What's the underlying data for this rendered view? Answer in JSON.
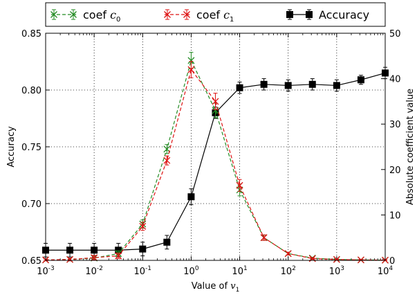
{
  "chart_data": {
    "type": "line",
    "x": [
      0.001,
      0.00316,
      0.01,
      0.0316,
      0.1,
      0.316,
      1,
      3.16,
      10,
      31.6,
      100,
      316,
      1000,
      3162,
      10000
    ],
    "xscale": "log",
    "xlim": [
      0.001,
      10000
    ],
    "x_tick_labels": [
      {
        "base": "10",
        "exp": "-3"
      },
      {
        "base": "10",
        "exp": "-2"
      },
      {
        "base": "10",
        "exp": "-1"
      },
      {
        "base": "10",
        "exp": "0"
      },
      {
        "base": "10",
        "exp": "1"
      },
      {
        "base": "10",
        "exp": "2"
      },
      {
        "base": "10",
        "exp": "3"
      },
      {
        "base": "10",
        "exp": "4"
      }
    ],
    "xlabel": {
      "text": "Value of ",
      "var": "v",
      "sub": "1"
    },
    "ylabel_left": "Accuracy",
    "ylim_left": [
      0.65,
      0.85
    ],
    "y_left_ticks": [
      "0.65",
      "0.70",
      "0.75",
      "0.80",
      "0.85"
    ],
    "ylabel_right": "Absolute coefficient value",
    "ylim_right": [
      0,
      50
    ],
    "y_right_ticks": [
      "0",
      "10",
      "20",
      "30",
      "40",
      "50"
    ],
    "grid": true,
    "legend_position": "top, outside",
    "series": [
      {
        "name": "coef",
        "name_var": "c",
        "name_sub": "0",
        "axis": "right",
        "color": "#228B22",
        "linestyle": "dashed",
        "marker": "x",
        "values": [
          0.1,
          0.2,
          0.5,
          1.5,
          8.0,
          24.5,
          44.0,
          33.0,
          15.5,
          5.0,
          1.5,
          0.5,
          0.2,
          0.1,
          0.05
        ],
        "errors": [
          0.2,
          0.3,
          0.5,
          0.6,
          0.9,
          1.0,
          1.8,
          1.6,
          1.3,
          0.6,
          0.3,
          0.2,
          0.1,
          0.1,
          0.05
        ]
      },
      {
        "name": "coef",
        "name_var": "c",
        "name_sub": "1",
        "axis": "right",
        "color": "#DD1111",
        "linestyle": "dashed",
        "marker": "x",
        "values": [
          0.1,
          0.2,
          0.6,
          1.0,
          7.5,
          22.0,
          42.0,
          35.0,
          16.5,
          5.0,
          1.5,
          0.4,
          0.2,
          0.1,
          0.05
        ],
        "errors": [
          0.2,
          0.3,
          0.5,
          0.6,
          0.9,
          1.0,
          1.8,
          1.8,
          1.3,
          0.6,
          0.3,
          0.2,
          0.1,
          0.1,
          0.05
        ]
      },
      {
        "name": "Accuracy",
        "axis": "left",
        "color": "#000000",
        "linestyle": "solid",
        "marker": "square",
        "values": [
          0.659,
          0.659,
          0.659,
          0.659,
          0.66,
          0.666,
          0.706,
          0.78,
          0.802,
          0.805,
          0.804,
          0.805,
          0.804,
          0.809,
          0.815
        ],
        "errors": [
          0.006,
          0.006,
          0.006,
          0.006,
          0.006,
          0.006,
          0.007,
          0.005,
          0.005,
          0.005,
          0.005,
          0.005,
          0.005,
          0.004,
          0.005
        ]
      }
    ]
  }
}
